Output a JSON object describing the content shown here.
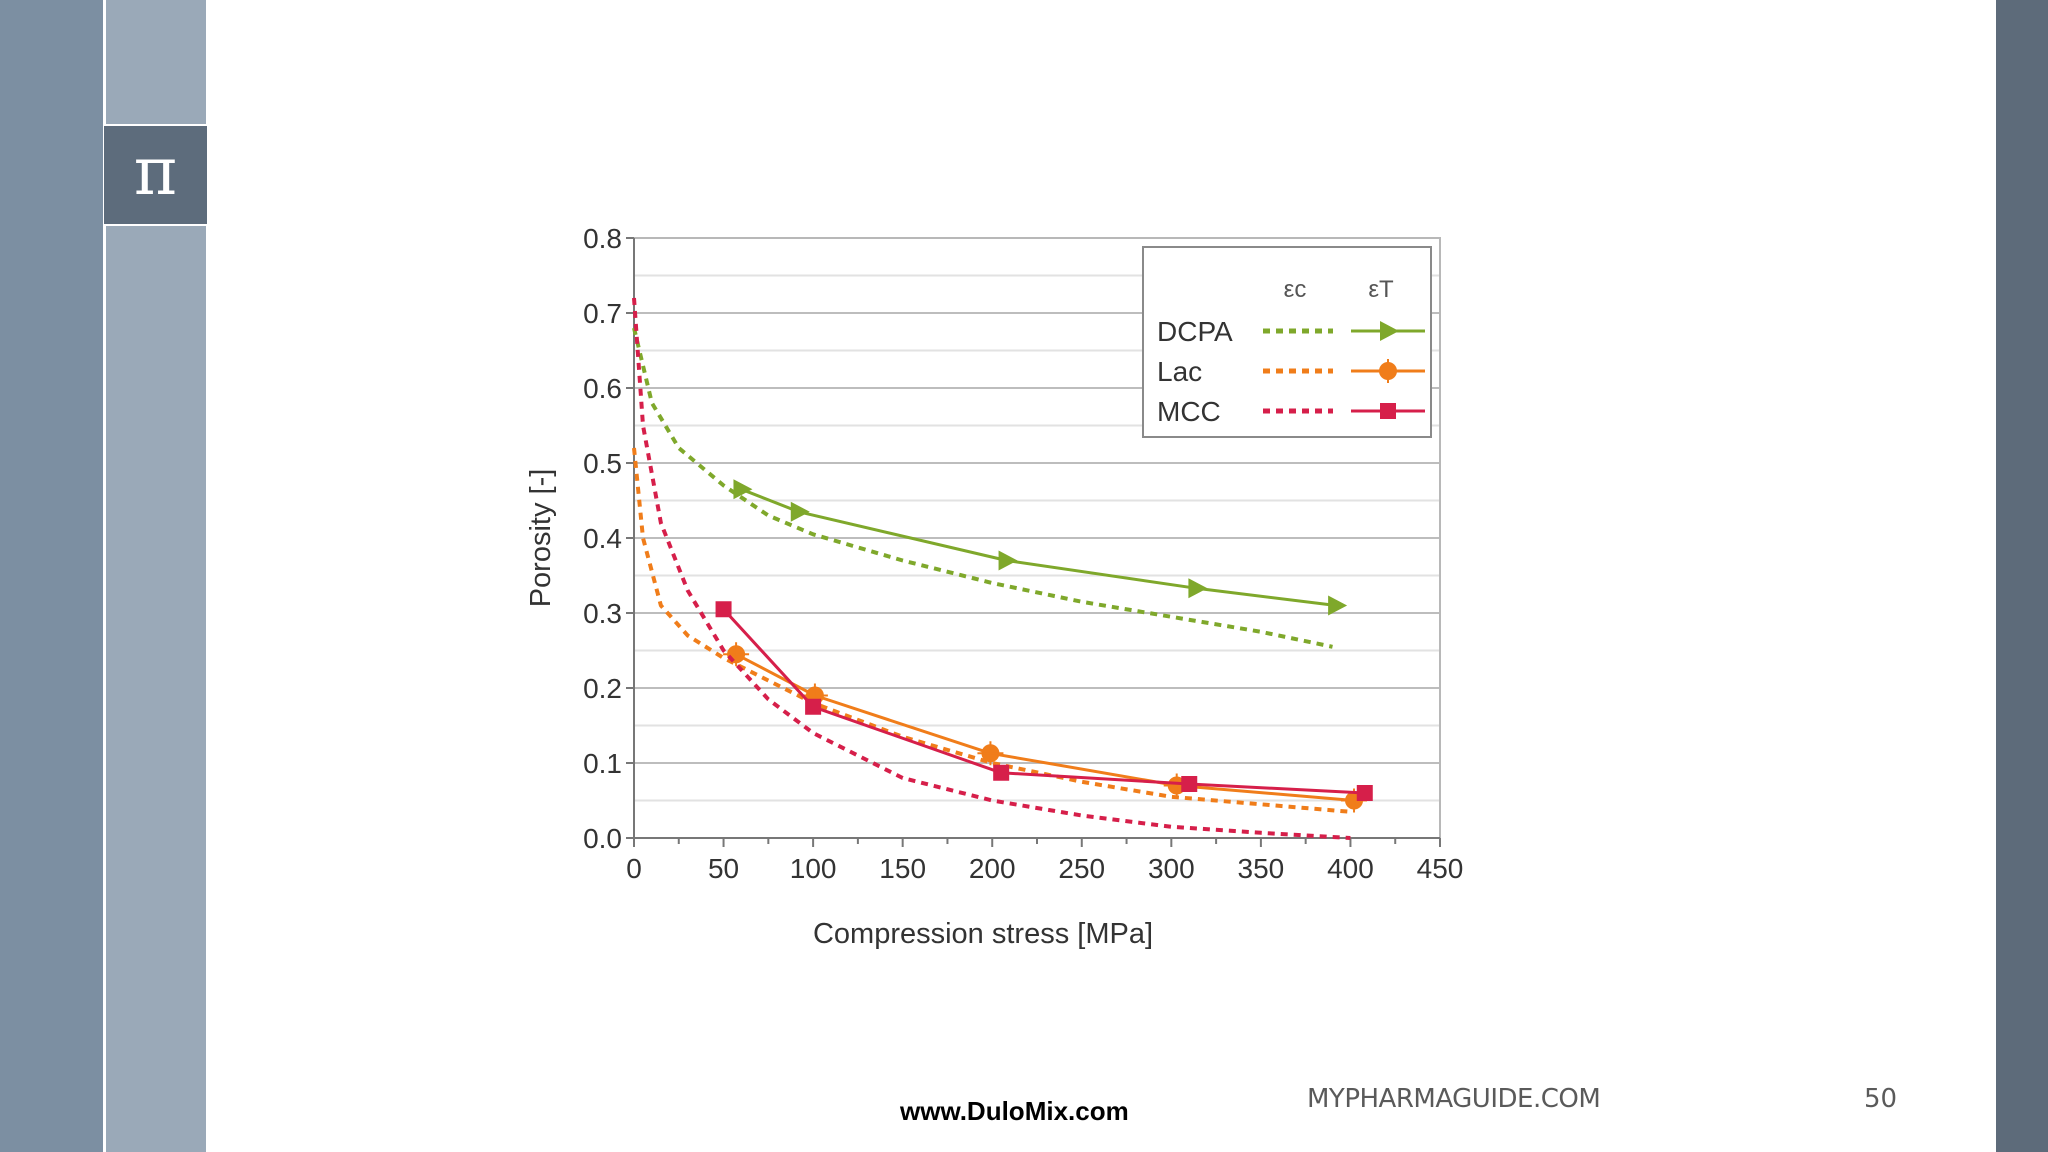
{
  "slide": {
    "logo_symbol": "π",
    "footer_site": "www.DuloMix.com",
    "footer_guide": "MYPHARMAGUIDE.COM",
    "page_number": "50"
  },
  "colors": {
    "DCPA": "#7fa82b",
    "Lac": "#f07d1a",
    "MCC": "#d61f4a"
  },
  "chart_data": {
    "type": "line",
    "xlabel": "Compression stress  [MPa]",
    "ylabel": "Porosity [-]",
    "xlim": [
      0,
      450
    ],
    "ylim": [
      0.0,
      0.8
    ],
    "xticks": [
      "0",
      "50",
      "100",
      "150",
      "200",
      "250",
      "300",
      "350",
      "400",
      "450"
    ],
    "yticks": [
      "0.0",
      "0.1",
      "0.2",
      "0.3",
      "0.4",
      "0.5",
      "0.6",
      "0.7",
      "0.8"
    ],
    "grid": true,
    "legend_position": "top-right",
    "legend_headers": [
      "εc",
      "εT"
    ],
    "series": [
      {
        "name": "DCPA",
        "style": "dashed",
        "legend_col": "εc",
        "x": [
          0,
          10,
          25,
          50,
          75,
          100,
          150,
          200,
          250,
          300,
          350,
          390
        ],
        "y": [
          0.68,
          0.58,
          0.52,
          0.47,
          0.43,
          0.405,
          0.37,
          0.34,
          0.315,
          0.295,
          0.275,
          0.255
        ]
      },
      {
        "name": "DCPA",
        "style": "solid",
        "legend_col": "εT",
        "marker": "triangle-right",
        "x": [
          60,
          92,
          208,
          314,
          392
        ],
        "y": [
          0.465,
          0.435,
          0.37,
          0.333,
          0.31
        ]
      },
      {
        "name": "Lac",
        "style": "dashed",
        "legend_col": "εc",
        "x": [
          0,
          5,
          15,
          30,
          50,
          75,
          100,
          150,
          200,
          250,
          300,
          350,
          400
        ],
        "y": [
          0.52,
          0.4,
          0.31,
          0.27,
          0.24,
          0.21,
          0.18,
          0.135,
          0.1,
          0.075,
          0.055,
          0.045,
          0.035
        ]
      },
      {
        "name": "Lac",
        "style": "solid",
        "legend_col": "εT",
        "marker": "circle",
        "x": [
          57,
          101,
          199,
          303,
          402
        ],
        "y": [
          0.245,
          0.19,
          0.113,
          0.07,
          0.05
        ]
      },
      {
        "name": "MCC",
        "style": "dashed",
        "legend_col": "εc",
        "x": [
          0,
          5,
          15,
          30,
          50,
          75,
          100,
          150,
          200,
          250,
          300,
          350,
          400
        ],
        "y": [
          0.72,
          0.55,
          0.42,
          0.33,
          0.25,
          0.185,
          0.14,
          0.08,
          0.05,
          0.03,
          0.015,
          0.007,
          0.0
        ]
      },
      {
        "name": "MCC",
        "style": "solid",
        "legend_col": "εT",
        "marker": "square",
        "x": [
          50,
          100,
          205,
          310,
          408
        ],
        "y": [
          0.305,
          0.175,
          0.087,
          0.072,
          0.06
        ]
      }
    ]
  }
}
